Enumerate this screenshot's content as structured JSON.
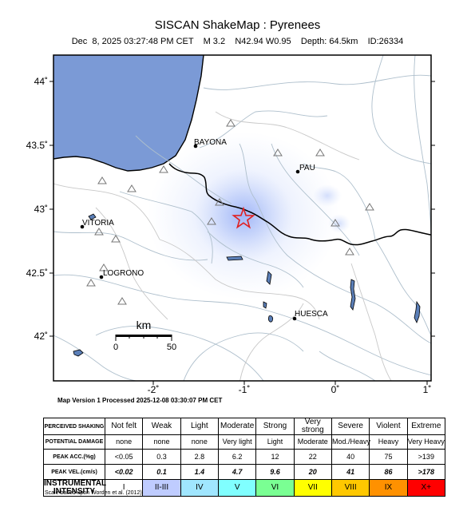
{
  "title": "SISCAN ShakeMap : Pyrenees",
  "subtitle": "Dec  8, 2025 03:27:48 PM CET    M 3.2    N42.94 W0.95    Depth: 64.5km    ID:26334",
  "map": {
    "lat_ticks": [
      "44˚",
      "43.5˚",
      "43˚",
      "42.5˚",
      "42˚"
    ],
    "lon_ticks": [
      "-2˚",
      "-1˚",
      "0˚",
      "1˚"
    ],
    "cities": [
      {
        "name": "BAYONA"
      },
      {
        "name": "PAU"
      },
      {
        "name": "VITORIA"
      },
      {
        "name": "LOGRONO"
      },
      {
        "name": "HUESCA"
      }
    ],
    "scale_bar": {
      "unit": "km",
      "min_label": "0",
      "max_label": "50"
    },
    "epicenter": {
      "lat": 42.94,
      "lon": -0.95
    },
    "colors": {
      "sea": "#7b9ad6",
      "shaking": "#9fb4f5",
      "epicenter": "#e02020",
      "border": "#000000",
      "rivers": "#b8c6d0"
    }
  },
  "version_text": "Map Version 1 Processed 2025-12-08 03:30:07 PM CET",
  "legend": {
    "rows": [
      {
        "header": "PERCEIVED SHAKING",
        "cells": [
          "Not felt",
          "Weak",
          "Light",
          "Moderate",
          "Strong",
          "Very strong",
          "Severe",
          "Violent",
          "Extreme"
        ]
      },
      {
        "header": "POTENTIAL DAMAGE",
        "cells": [
          "none",
          "none",
          "none",
          "Very light",
          "Light",
          "Moderate",
          "Mod./Heavy",
          "Heavy",
          "Very Heavy"
        ]
      },
      {
        "header": "PEAK ACC.(%g)",
        "cells": [
          "<0.05",
          "0.3",
          "2.8",
          "6.2",
          "12",
          "22",
          "40",
          "75",
          ">139"
        ]
      },
      {
        "header": "PEAK VEL.(cm/s)",
        "cells": [
          "<0.02",
          "0.1",
          "1.4",
          "4.7",
          "9.6",
          "20",
          "41",
          "86",
          ">178"
        ]
      },
      {
        "header": "INSTRUMENTAL INTENSITY",
        "cells": [
          "I",
          "II-III",
          "IV",
          "V",
          "VI",
          "VII",
          "VIII",
          "IX",
          "X+"
        ]
      }
    ],
    "intensity_colors": [
      "#ffffff",
      "#bfccff",
      "#a0e6ff",
      "#80ffff",
      "#7aff93",
      "#ffff00",
      "#ffc800",
      "#ff9100",
      "#ff0000"
    ]
  },
  "scale_note": "Scale based upon Worden et al. (2012)"
}
